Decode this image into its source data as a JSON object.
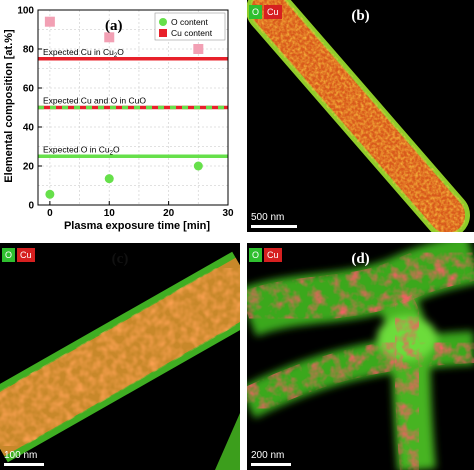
{
  "chart_data": {
    "type": "scatter",
    "panel_label": "(a)",
    "xlabel": "Plasma exposure time [min]",
    "ylabel": "Elemental composition [at.%]",
    "xlim": [
      -2,
      30
    ],
    "ylim": [
      0,
      100
    ],
    "xticks": [
      0,
      10,
      20,
      30
    ],
    "yticks": [
      0,
      20,
      40,
      60,
      80,
      100
    ],
    "grid": true,
    "legend_position": "top-right",
    "series": [
      {
        "name": "O content",
        "marker": "circle",
        "color": "#66e04a",
        "x": [
          0,
          10,
          25
        ],
        "y": [
          5.5,
          13.5,
          20
        ]
      },
      {
        "name": "Cu content",
        "marker": "square",
        "color": "#f2a0b4",
        "x": [
          0,
          10,
          25
        ],
        "y": [
          94,
          86,
          80
        ]
      }
    ],
    "reference_lines": [
      {
        "label_pre": "Expected Cu in Cu",
        "label_sub": "2",
        "label_post": "O",
        "y": 75,
        "color": "#e8202a",
        "style": "solid"
      },
      {
        "label_pre": "Expected Cu and O in CuO",
        "label_sub": "",
        "label_post": "",
        "y": 50,
        "color": "#e8202a",
        "alt_color": "#66e04a",
        "style": "dashed-bicolor"
      },
      {
        "label_pre": "Expected O in Cu",
        "label_sub": "2",
        "label_post": "O",
        "y": 25,
        "color": "#66e04a",
        "style": "solid"
      }
    ]
  },
  "map_panels": [
    {
      "label": "(b)",
      "channel_o": "O",
      "channel_cu": "Cu",
      "scale_text": "500 nm"
    },
    {
      "label": "(c)",
      "channel_o": "O",
      "channel_cu": "Cu",
      "scale_text": "100 nm"
    },
    {
      "label": "(d)",
      "channel_o": "O",
      "channel_cu": "Cu",
      "scale_text": "200 nm"
    }
  ]
}
